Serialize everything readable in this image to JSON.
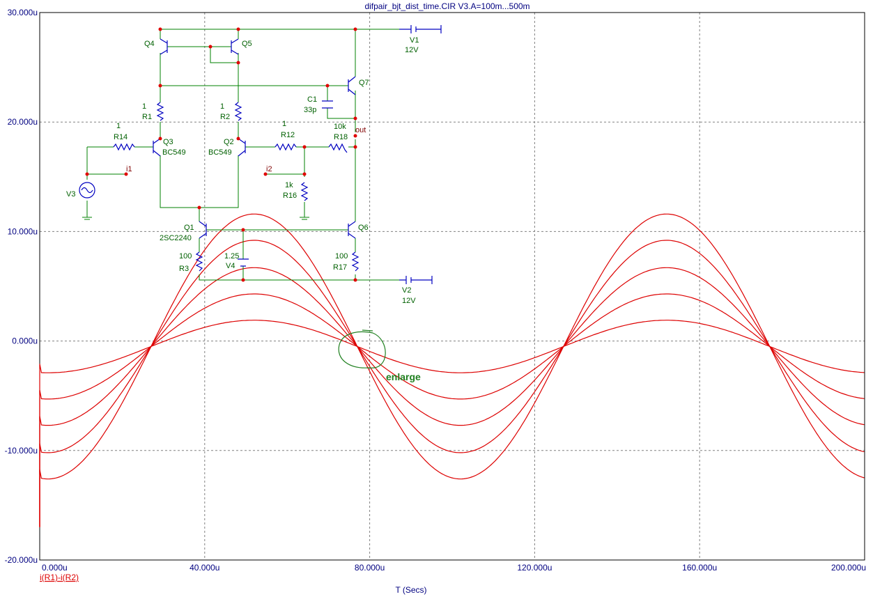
{
  "colors": {
    "background": "#ffffff",
    "trace": "#dd0000",
    "grid": "#808080",
    "axis_text": "#000080",
    "schematic_wire": "#008000",
    "schematic_label": "#006000",
    "component": "#0000c0",
    "node": "#e00000",
    "annotation": "#208020"
  },
  "chart_data": {
    "type": "line",
    "title": "difpair_bjt_dist_time.CIR V3.A=100m...500m",
    "xlabel": "T (Secs)",
    "ylabel": "",
    "series_label": "i(R1)-i(R2)",
    "xlim": [
      0,
      200
    ],
    "ylim": [
      -20,
      30
    ],
    "x_unit": "u",
    "x_ticks": [
      "0.000u",
      "40.000u",
      "80.000u",
      "120.000u",
      "160.000u",
      "200.000u"
    ],
    "y_ticks": [
      "30.000u",
      "20.000u",
      "10.000u",
      "0.000u",
      "-10.000u",
      "-20.000u"
    ],
    "grid": true,
    "period_us": 100,
    "zero_cross_us": 27,
    "dc_offset_u": -0.5,
    "series": [
      {
        "amplitude_u": 12.1,
        "valley_u": -12.6
      },
      {
        "amplitude_u": 9.7,
        "valley_u": -10.2
      },
      {
        "amplitude_u": 7.2,
        "valley_u": -7.7
      },
      {
        "amplitude_u": 4.8,
        "valley_u": -5.3
      },
      {
        "amplitude_u": 2.4,
        "valley_u": -2.9
      }
    ]
  },
  "schematic": {
    "labels": {
      "Q4": "Q4",
      "Q5": "Q5",
      "Q7": "Q7",
      "Q3": "Q3",
      "Q3m": "BC549",
      "Q2": "Q2",
      "Q2m": "BC549",
      "Q1": "Q1",
      "Q1m": "2SC2240",
      "Q6": "Q6",
      "R1": "R1",
      "R1v": "1",
      "R2": "R2",
      "R2v": "1",
      "R14": "R14",
      "R14v": "1",
      "R12": "R12",
      "R12v": "1",
      "R18": "R18",
      "R18v": "10k",
      "R16": "R16",
      "R16v": "1k",
      "R3": "R3",
      "R3v": "100",
      "R17": "R17",
      "R17v": "100",
      "C1": "C1",
      "C1v": "33p",
      "V1": "V1",
      "V1v": "12V",
      "V2": "V2",
      "V2v": "12V",
      "V3": "V3",
      "V4": "V4",
      "V4v": "1.25",
      "i1": "i1",
      "i2": "i2",
      "out": "out"
    }
  },
  "annotation": {
    "text": "enlarge"
  }
}
